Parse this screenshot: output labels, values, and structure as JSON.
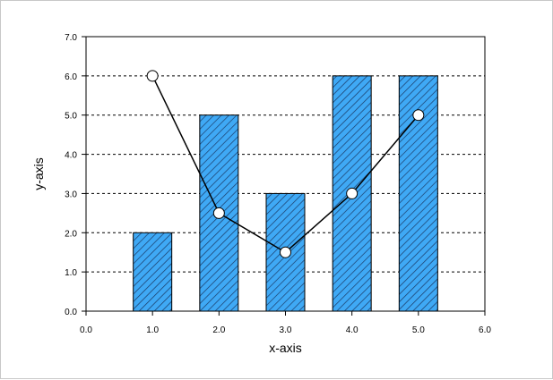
{
  "chart_data": {
    "type": "bar",
    "xlabel": "x-axis",
    "ylabel": "y-axis",
    "xlim": [
      0,
      6
    ],
    "ylim": [
      0,
      7
    ],
    "x_ticks": [
      "0.0",
      "1.0",
      "2.0",
      "3.0",
      "4.0",
      "5.0",
      "6.0"
    ],
    "y_ticks": [
      "0.0",
      "1.0",
      "2.0",
      "3.0",
      "4.0",
      "5.0",
      "6.0",
      "7.0"
    ],
    "grid": "horizontal-dashed",
    "bars": {
      "x": [
        1,
        2,
        3,
        4,
        5
      ],
      "values": [
        2,
        5,
        3,
        6,
        6
      ],
      "color": "#3fa9f5",
      "pattern": "diagonal-hatch"
    },
    "line": {
      "x": [
        1,
        2,
        3,
        4,
        5
      ],
      "values": [
        6,
        2.5,
        1.5,
        3,
        5
      ],
      "color": "#000000",
      "marker": "open-circle"
    }
  }
}
